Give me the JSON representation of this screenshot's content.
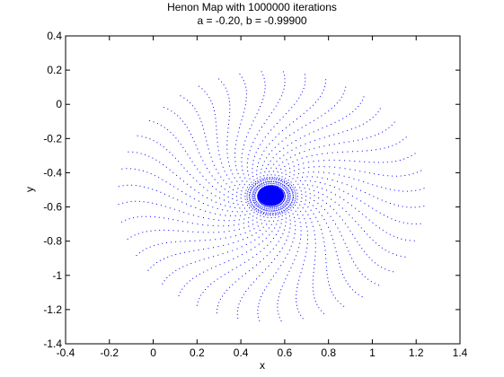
{
  "chart_data": {
    "type": "scatter",
    "title": "Henon Map with 1000000 iterations",
    "subtitle": "a = -0.20, b = -0.99900",
    "xlabel": "x",
    "ylabel": "y",
    "xlim": [
      -0.4,
      1.4
    ],
    "ylim": [
      -1.4,
      0.4
    ],
    "xticks": [
      "-0.4",
      "-0.2",
      "0",
      "0.2",
      "0.4",
      "0.6",
      "0.8",
      "1",
      "1.2",
      "1.4"
    ],
    "yticks": [
      "0.4",
      "0.2",
      "0",
      "-0.2",
      "-0.4",
      "-0.6",
      "-0.8",
      "-1",
      "-1.2",
      "-1.4"
    ],
    "grid": false,
    "marker_color": "#0000ff",
    "series": [
      {
        "values_note": "",
        "center": [
          0.537,
          -0.535
        ],
        "outer_radius": [
          0.75,
          0.76
        ],
        "core_radius": 0.06
      }
    ]
  }
}
